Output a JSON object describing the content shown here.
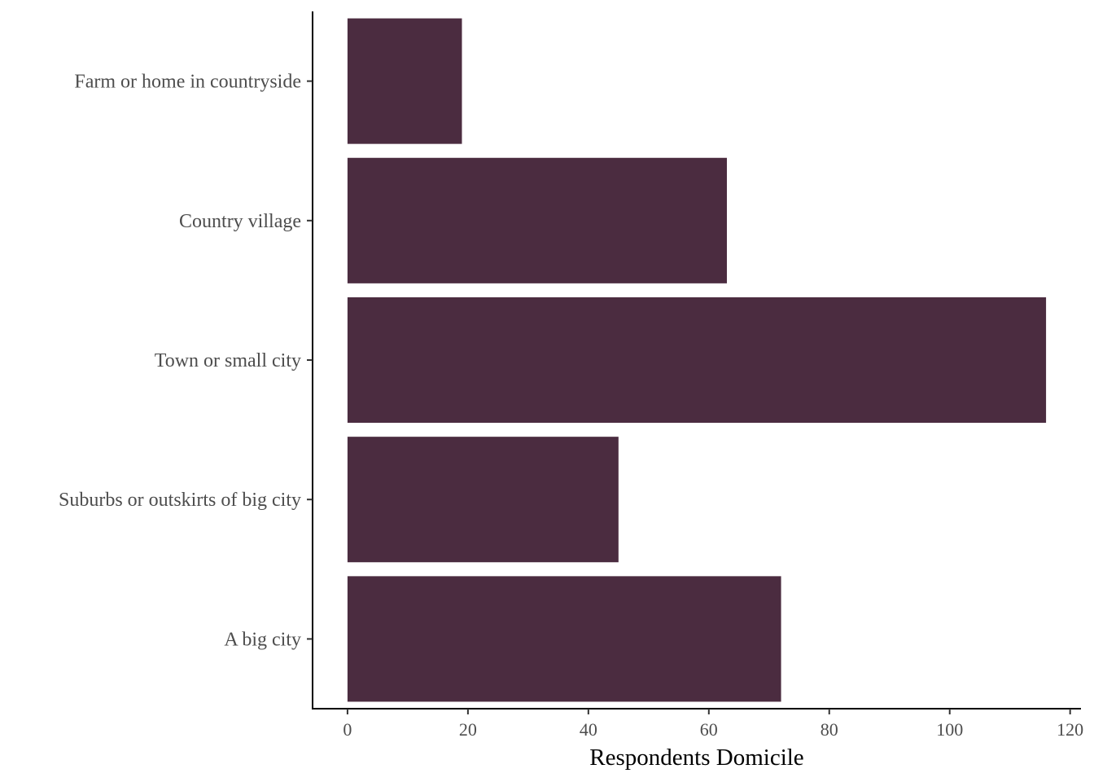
{
  "chart_data": {
    "type": "bar",
    "orientation": "horizontal",
    "title": "",
    "xlabel": "Respondents Domicile",
    "ylabel": "",
    "categories": [
      "Farm or home in countryside",
      "Country village",
      "Town or small city",
      "Suburbs or outskirts of big city",
      "A big city"
    ],
    "values": [
      19,
      63,
      116,
      45,
      72
    ],
    "xlim": [
      -5.8,
      121.8
    ],
    "xticks": [
      0,
      20,
      40,
      60,
      80,
      100,
      120
    ],
    "grid": false,
    "bar_color": "#4B2C40"
  }
}
